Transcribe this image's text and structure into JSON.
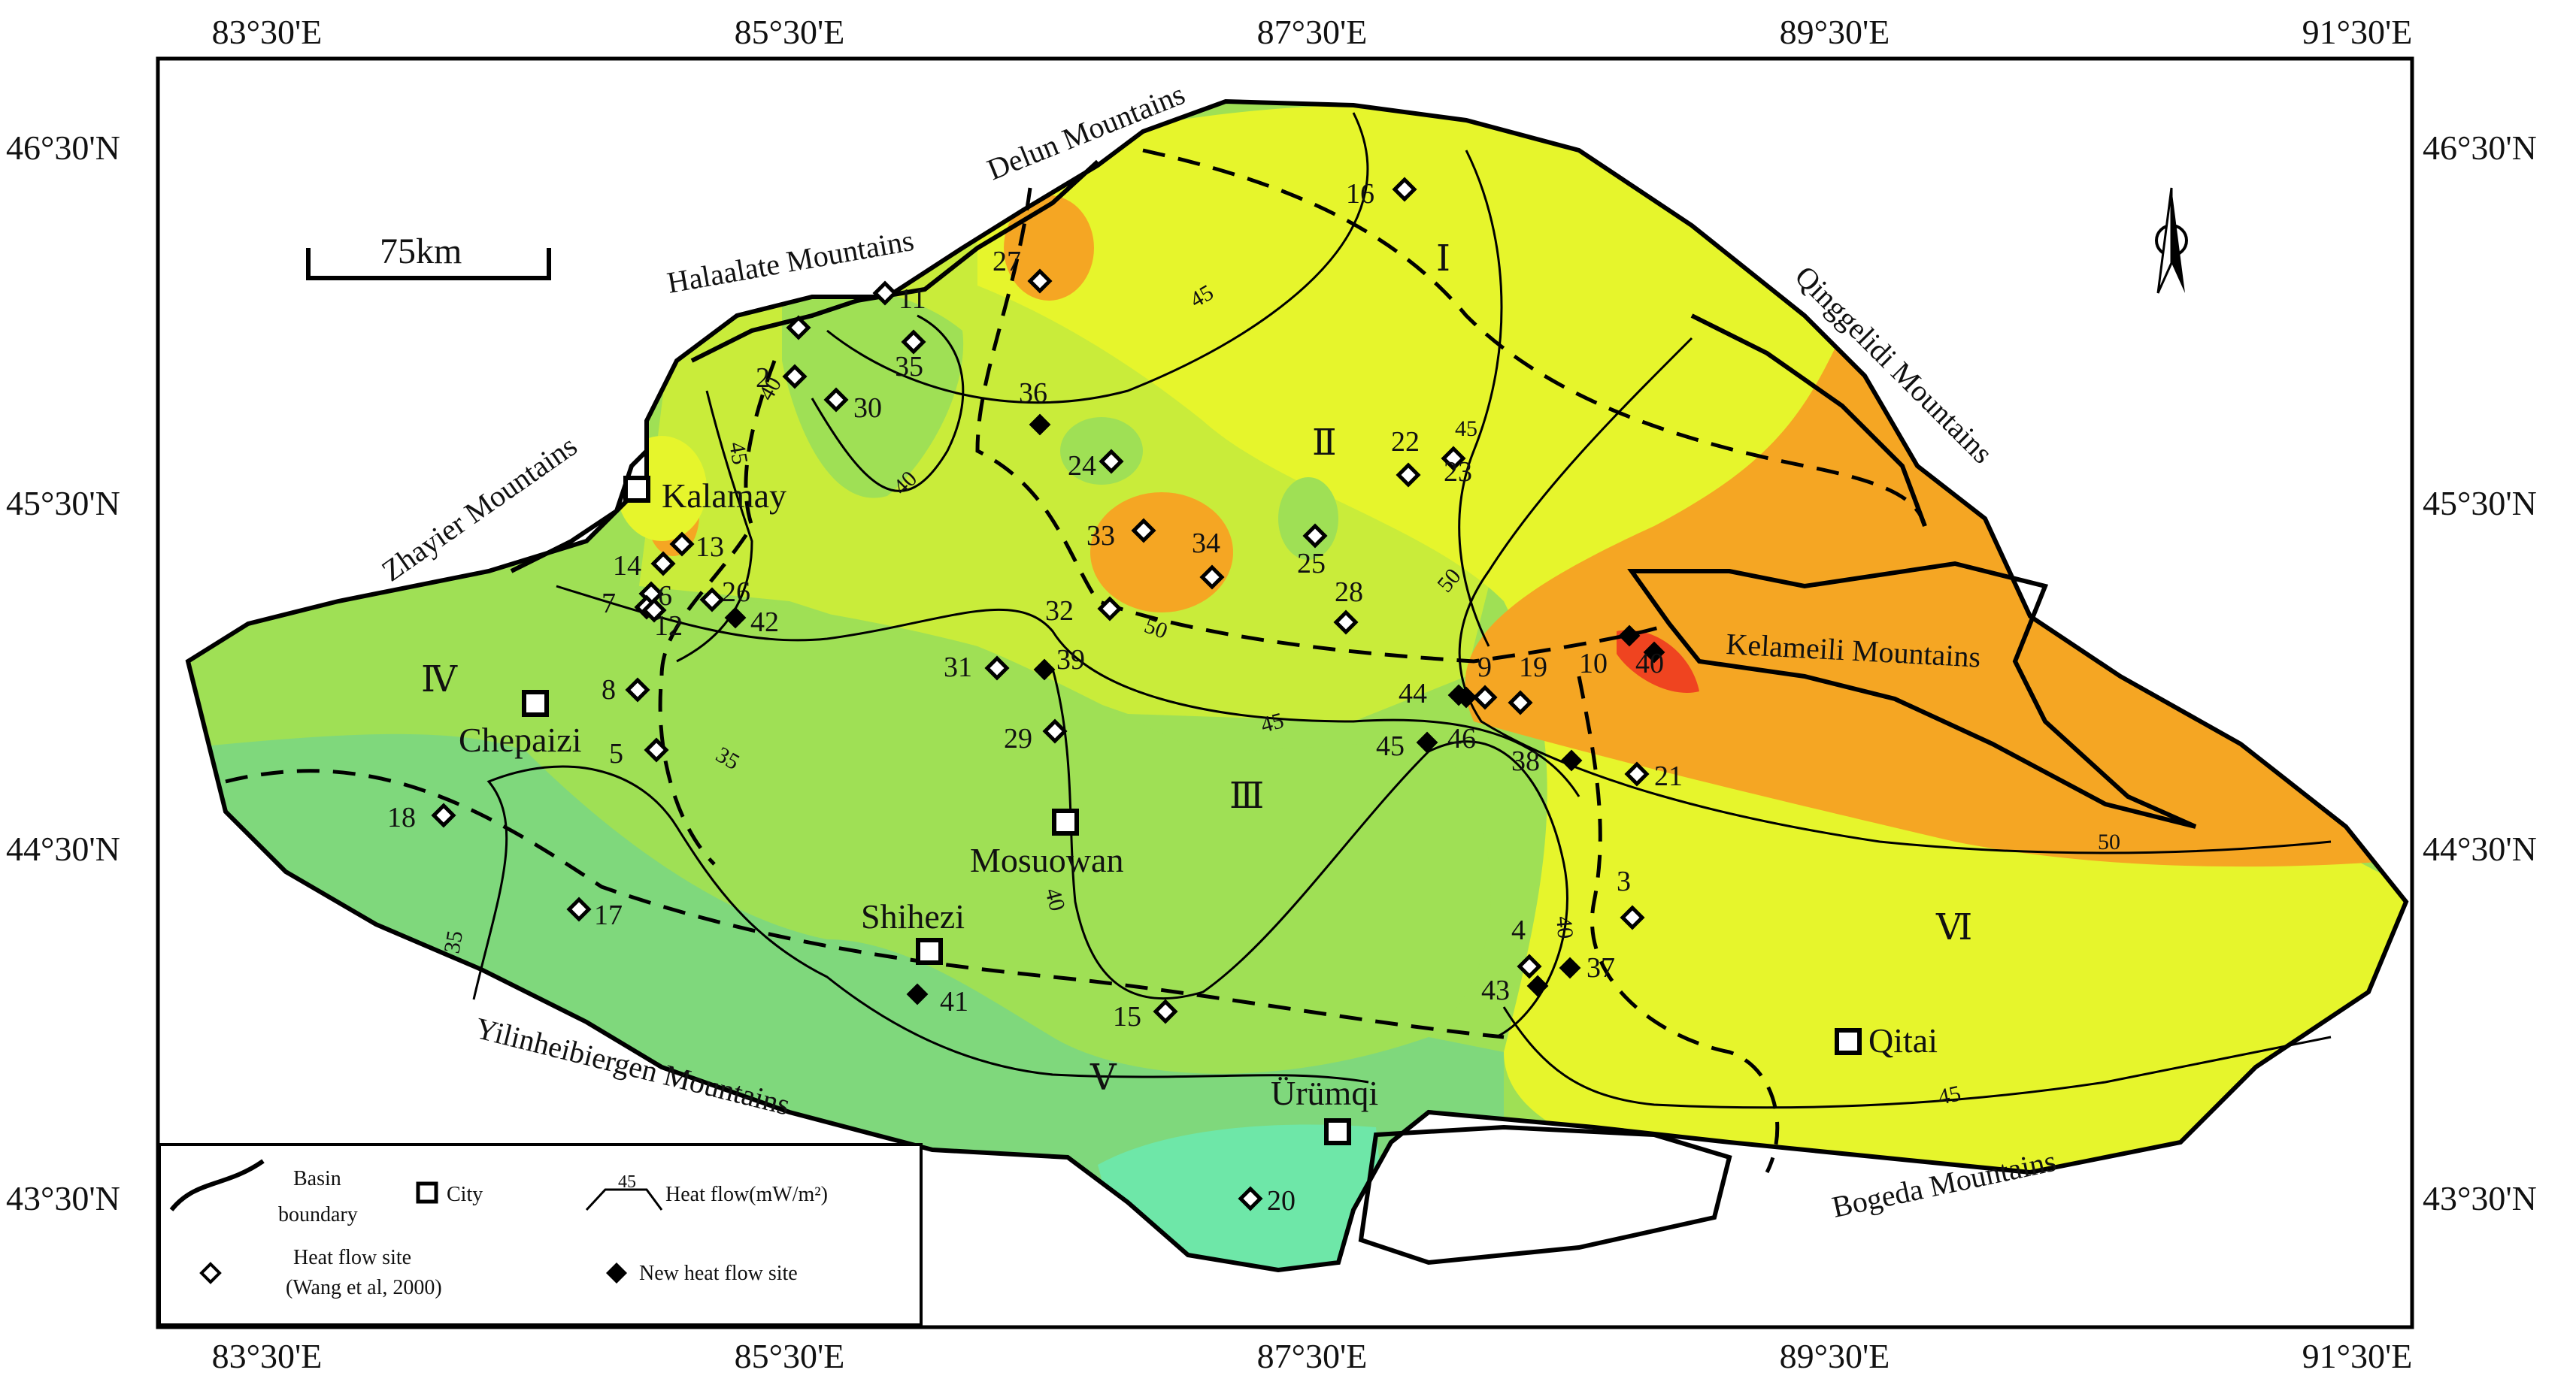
{
  "colors": {
    "orange": "#f5a623",
    "red": "#ef4420",
    "yellow": "#e6f52c",
    "yellowgreen": "#c9ec3a",
    "green": "#9fe055",
    "lightgreen": "#7fd87c",
    "teal": "#6ee7a8"
  },
  "axes": {
    "top": [
      "83°30'E",
      "85°30'E",
      "87°30'E",
      "89°30'E",
      "91°30'E"
    ],
    "bottom": [
      "83°30'E",
      "85°30'E",
      "87°30'E",
      "89°30'E",
      "91°30'E"
    ],
    "left": [
      "46°30'N",
      "45°30'N",
      "44°30'N",
      "43°30'N"
    ],
    "right": [
      "46°30'N",
      "45°30'N",
      "44°30'N",
      "43°30'N"
    ]
  },
  "scale_bar": "75km",
  "mountains": {
    "delun": "Delun Mountains",
    "halaalate": "Halaalate Mountains",
    "zhayier": "Zhayier Mountains",
    "qinggelidi": "Qinggelidi Mountains",
    "kelameili": "Kelameili Mountains",
    "yilinheibiergen": "Yilinheibiergen Mountains",
    "bogeda": "Bogeda Mountains"
  },
  "cities": {
    "kalamay": "Kalamay",
    "chepaizi": "Chepaizi",
    "mosuowan": "Mosuowan",
    "shihezi": "Shihezi",
    "urumqi": "Ürümqi",
    "qitai": "Qitai"
  },
  "zones": {
    "I": "Ⅰ",
    "II": "Ⅱ",
    "III": "Ⅲ",
    "IV": "Ⅳ",
    "V": "Ⅴ",
    "VI": "Ⅵ"
  },
  "isolines": {
    "i45a": "45",
    "i45b": "45",
    "i45c": "45",
    "i45d": "45",
    "i45e": "45",
    "i40a": "40",
    "i40b": "40",
    "i40c": "40",
    "i35a": "35",
    "i35b": "35",
    "i50a": "50",
    "i50b": "50",
    "i50c": "50"
  },
  "sites_old": [
    {
      "id": "s16",
      "label": "16"
    },
    {
      "id": "s27",
      "label": "27"
    },
    {
      "id": "s11",
      "label": "11"
    },
    {
      "id": "s1",
      "label": ""
    },
    {
      "id": "s35",
      "label": "35"
    },
    {
      "id": "s2",
      "label": "2"
    },
    {
      "id": "s30",
      "label": "30"
    },
    {
      "id": "s24",
      "label": "24"
    },
    {
      "id": "s22",
      "label": "22"
    },
    {
      "id": "s23",
      "label": "23"
    },
    {
      "id": "s33",
      "label": "33"
    },
    {
      "id": "s34",
      "label": "34"
    },
    {
      "id": "s25",
      "label": "25"
    },
    {
      "id": "s28",
      "label": "28"
    },
    {
      "id": "s13",
      "label": "13"
    },
    {
      "id": "s14",
      "label": "14"
    },
    {
      "id": "s6",
      "label": "6"
    },
    {
      "id": "s7",
      "label": "7"
    },
    {
      "id": "s12",
      "label": "12"
    },
    {
      "id": "s26",
      "label": "26"
    },
    {
      "id": "s32",
      "label": "32"
    },
    {
      "id": "s31",
      "label": "31"
    },
    {
      "id": "s8",
      "label": "8"
    },
    {
      "id": "s5",
      "label": "5"
    },
    {
      "id": "s29",
      "label": "29"
    },
    {
      "id": "s9",
      "label": "9"
    },
    {
      "id": "s19",
      "label": "19"
    },
    {
      "id": "s21",
      "label": "21"
    },
    {
      "id": "s18",
      "label": "18"
    },
    {
      "id": "s17",
      "label": "17"
    },
    {
      "id": "s3",
      "label": "3"
    },
    {
      "id": "s4",
      "label": "4"
    },
    {
      "id": "s15",
      "label": "15"
    },
    {
      "id": "s20",
      "label": "20"
    }
  ],
  "sites_new": [
    {
      "id": "n36",
      "label": "36"
    },
    {
      "id": "n42",
      "label": "42"
    },
    {
      "id": "n39",
      "label": "39"
    },
    {
      "id": "n10",
      "label": "10"
    },
    {
      "id": "n40",
      "label": "40"
    },
    {
      "id": "n44",
      "label": "44"
    },
    {
      "id": "n46",
      "label": "46"
    },
    {
      "id": "n45",
      "label": "45"
    },
    {
      "id": "n38",
      "label": "38"
    },
    {
      "id": "n41",
      "label": "41"
    },
    {
      "id": "n37",
      "label": "37"
    },
    {
      "id": "n43",
      "label": "43"
    }
  ],
  "legend": {
    "basin_line1": "Basin",
    "basin_line2": "boundary",
    "city": "City",
    "heat_flow_sample": "45",
    "heat_flow": "Heat flow(mW/m²)",
    "site_line1": "Heat flow site",
    "site_line2": "(Wang et al, 2000)",
    "new_site": "New heat flow site"
  }
}
